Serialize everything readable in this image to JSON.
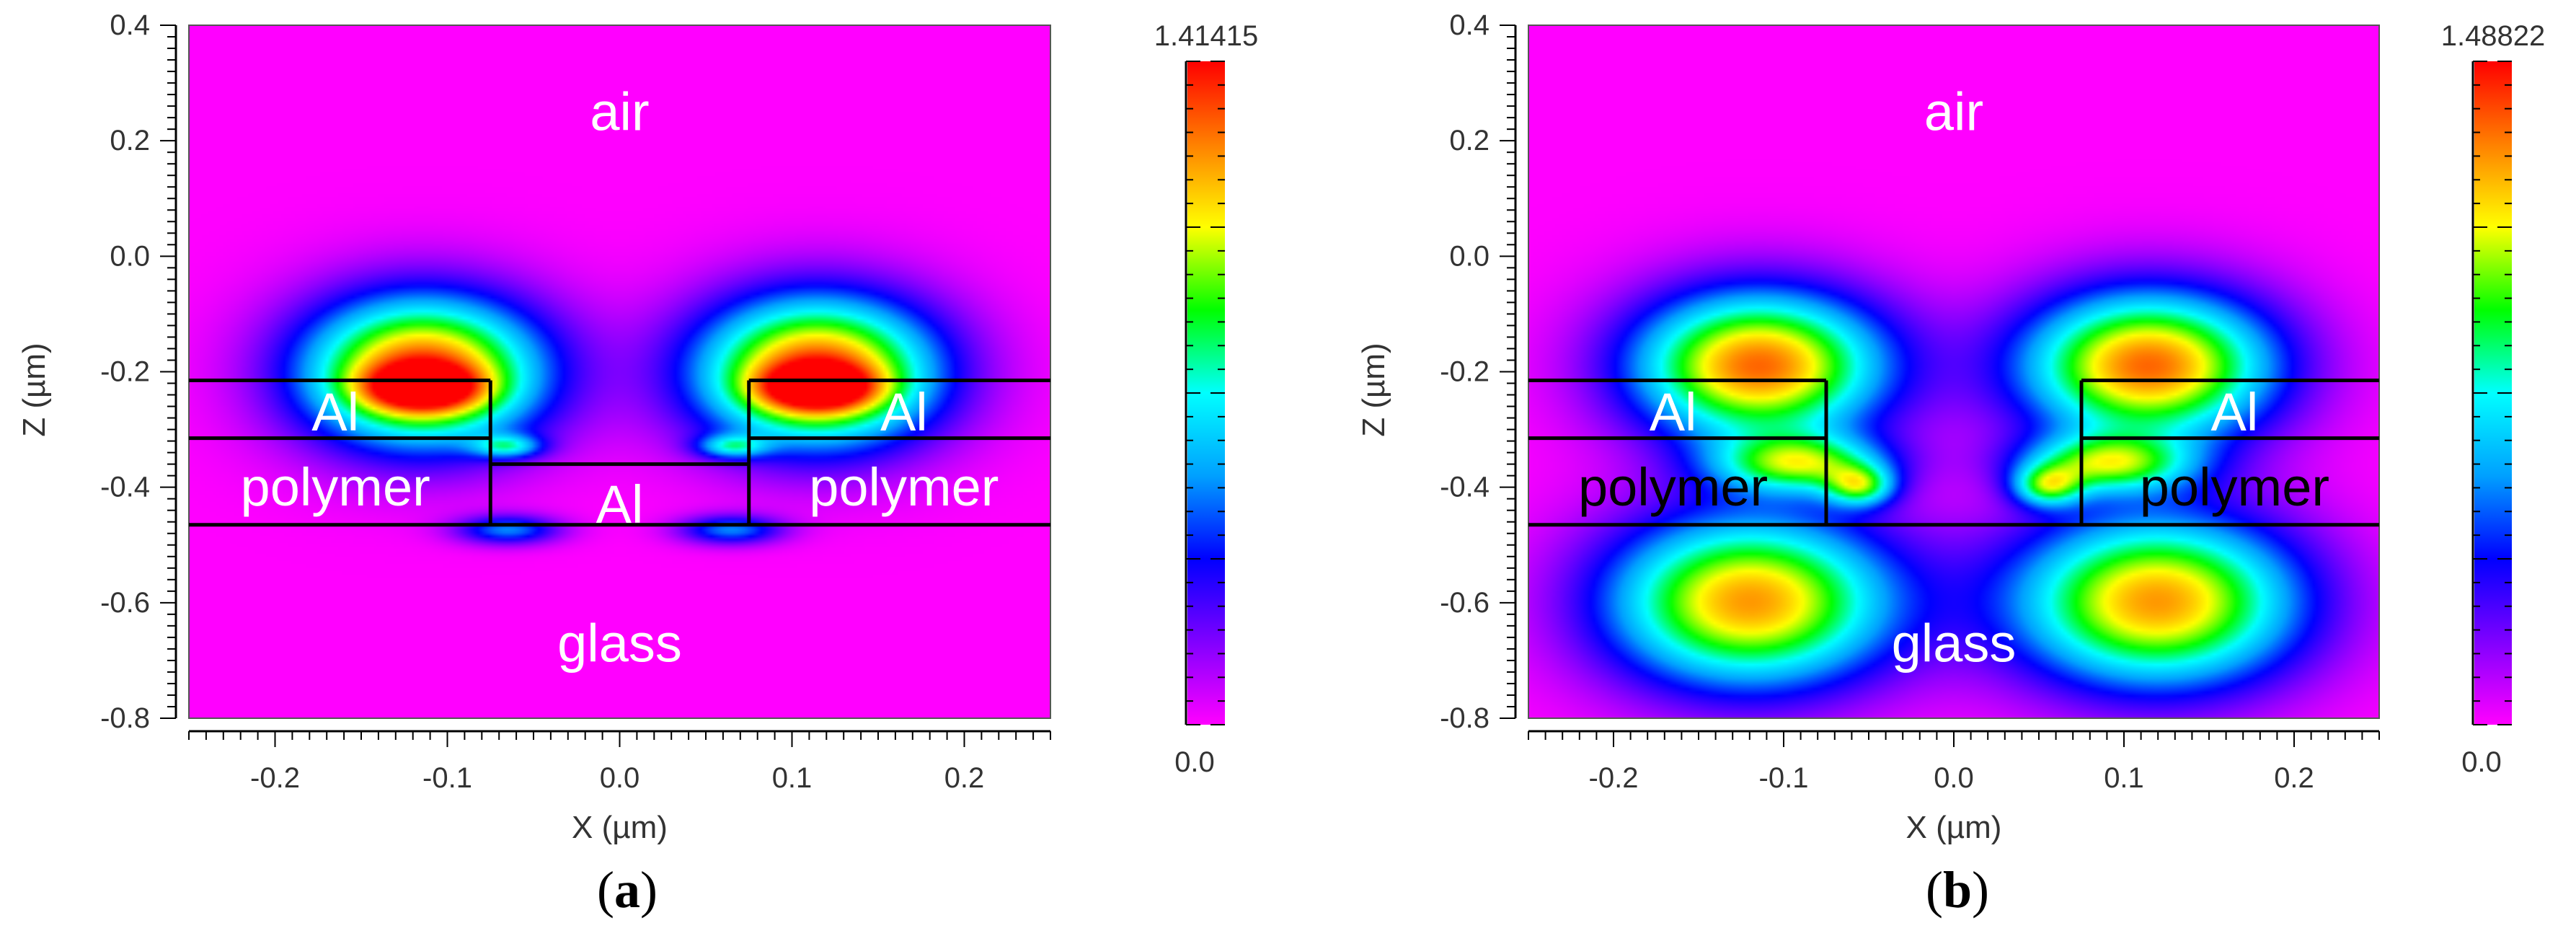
{
  "chart_data": [
    {
      "type": "heatmap",
      "panel_label": "a",
      "xlabel": "X (µm)",
      "ylabel": "Z (µm)",
      "xlim": [
        -0.25,
        0.25
      ],
      "ylim": [
        -0.8,
        0.4
      ],
      "x_ticks": [
        -0.2,
        -0.1,
        0.0,
        0.1,
        0.2
      ],
      "y_ticks": [
        0.4,
        0.2,
        0.0,
        -0.2,
        -0.4,
        -0.6,
        -0.8
      ],
      "colorbar": {
        "min": 0.0,
        "max": 1.41415,
        "min_label": "0.0",
        "max_label": "1.41415"
      },
      "region_labels": [
        {
          "text": "air",
          "x": 0.0,
          "z": 0.25
        },
        {
          "text": "Al",
          "x": -0.165,
          "z": -0.27
        },
        {
          "text": "polymer",
          "x": -0.165,
          "z": -0.4
        },
        {
          "text": "Al",
          "x": 0.0,
          "z": -0.43
        },
        {
          "text": "Al",
          "x": 0.165,
          "z": -0.27
        },
        {
          "text": "polymer",
          "x": 0.165,
          "z": -0.4
        },
        {
          "text": "glass",
          "x": 0.0,
          "z": -0.67
        }
      ],
      "structure_lines": [
        [
          [
            -0.25,
            -0.215
          ],
          [
            -0.075,
            -0.215
          ]
        ],
        [
          [
            -0.25,
            -0.315
          ],
          [
            -0.075,
            -0.315
          ]
        ],
        [
          [
            -0.25,
            -0.465
          ],
          [
            0.25,
            -0.465
          ]
        ],
        [
          [
            -0.075,
            -0.215
          ],
          [
            -0.075,
            -0.465
          ]
        ],
        [
          [
            0.075,
            -0.215
          ],
          [
            0.25,
            -0.215
          ]
        ],
        [
          [
            0.075,
            -0.315
          ],
          [
            0.25,
            -0.315
          ]
        ],
        [
          [
            0.075,
            -0.215
          ],
          [
            0.075,
            -0.465
          ]
        ],
        [
          [
            -0.075,
            -0.36
          ],
          [
            0.075,
            -0.36
          ]
        ]
      ],
      "hotspots": [
        {
          "x": -0.115,
          "z": -0.2,
          "sx": 0.07,
          "sz": 0.13,
          "v": 0.95
        },
        {
          "x": 0.115,
          "z": -0.2,
          "sx": 0.07,
          "sz": 0.13,
          "v": 0.95
        },
        {
          "x": -0.115,
          "z": -0.23,
          "sx": 0.035,
          "sz": 0.04,
          "v": 0.45
        },
        {
          "x": 0.115,
          "z": -0.23,
          "sx": 0.035,
          "sz": 0.04,
          "v": 0.45
        },
        {
          "x": -0.065,
          "z": -0.33,
          "sx": 0.02,
          "sz": 0.02,
          "v": 0.35
        },
        {
          "x": 0.065,
          "z": -0.33,
          "sx": 0.02,
          "sz": 0.02,
          "v": 0.35
        },
        {
          "x": -0.065,
          "z": -0.475,
          "sx": 0.03,
          "sz": 0.025,
          "v": 0.35
        },
        {
          "x": 0.065,
          "z": -0.475,
          "sx": 0.03,
          "sz": 0.025,
          "v": 0.35
        }
      ]
    },
    {
      "type": "heatmap",
      "panel_label": "b",
      "xlabel": "X (µm)",
      "ylabel": "Z (µm)",
      "xlim": [
        -0.25,
        0.25
      ],
      "ylim": [
        -0.8,
        0.4
      ],
      "x_ticks": [
        -0.2,
        -0.1,
        0.0,
        0.1,
        0.2
      ],
      "y_ticks": [
        0.4,
        0.2,
        0.0,
        -0.2,
        -0.4,
        -0.6,
        -0.8
      ],
      "colorbar": {
        "min": 0.0,
        "max": 1.48822,
        "min_label": "0.0",
        "max_label": "1.48822"
      },
      "region_labels": [
        {
          "text": "air",
          "x": 0.0,
          "z": 0.25
        },
        {
          "text": "Al",
          "x": -0.165,
          "z": -0.27
        },
        {
          "text": "polymer",
          "x": -0.165,
          "z": -0.4
        },
        {
          "text": "Al",
          "x": 0.165,
          "z": -0.27
        },
        {
          "text": "polymer",
          "x": 0.165,
          "z": -0.4
        },
        {
          "text": "glass",
          "x": 0.0,
          "z": -0.67
        }
      ],
      "structure_lines": [
        [
          [
            -0.25,
            -0.215
          ],
          [
            -0.075,
            -0.215
          ]
        ],
        [
          [
            -0.25,
            -0.315
          ],
          [
            -0.075,
            -0.315
          ]
        ],
        [
          [
            -0.25,
            -0.465
          ],
          [
            0.25,
            -0.465
          ]
        ],
        [
          [
            -0.075,
            -0.215
          ],
          [
            -0.075,
            -0.465
          ]
        ],
        [
          [
            0.075,
            -0.215
          ],
          [
            0.25,
            -0.215
          ]
        ],
        [
          [
            0.075,
            -0.315
          ],
          [
            0.25,
            -0.315
          ]
        ],
        [
          [
            0.075,
            -0.215
          ],
          [
            0.075,
            -0.465
          ]
        ]
      ],
      "hotspots": [
        {
          "x": -0.115,
          "z": -0.19,
          "sx": 0.075,
          "sz": 0.13,
          "v": 0.9
        },
        {
          "x": 0.115,
          "z": -0.19,
          "sx": 0.075,
          "sz": 0.13,
          "v": 0.9
        },
        {
          "x": -0.12,
          "z": -0.6,
          "sx": 0.085,
          "sz": 0.15,
          "v": 0.85
        },
        {
          "x": 0.12,
          "z": -0.6,
          "sx": 0.085,
          "sz": 0.15,
          "v": 0.85
        },
        {
          "x": -0.09,
          "z": -0.36,
          "sx": 0.05,
          "sz": 0.05,
          "v": 0.55
        },
        {
          "x": 0.09,
          "z": -0.36,
          "sx": 0.05,
          "sz": 0.05,
          "v": 0.55
        },
        {
          "x": -0.055,
          "z": -0.4,
          "sx": 0.02,
          "sz": 0.035,
          "v": 0.45
        },
        {
          "x": 0.055,
          "z": -0.4,
          "sx": 0.02,
          "sz": 0.035,
          "v": 0.45
        }
      ]
    }
  ],
  "colors": {
    "colormap": [
      "#ff00ff",
      "#8000ff",
      "#0000ff",
      "#00a0ff",
      "#00ffff",
      "#00ff00",
      "#ffff00",
      "#ff8000",
      "#ff0000"
    ],
    "axis": "#000000",
    "tick_label": "#333333",
    "region_label": "#ffffff",
    "region_label_dark": "#000000"
  }
}
